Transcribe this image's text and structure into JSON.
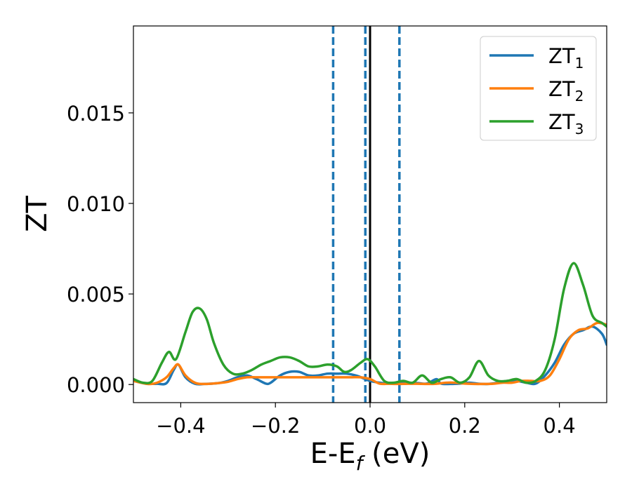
{
  "chart_data": {
    "type": "line",
    "title": "",
    "xlabel": {
      "main": "E-E",
      "sub": "f",
      "unit": " (eV)"
    },
    "ylabel": "ZT",
    "xlim": [
      -0.5,
      0.5
    ],
    "ylim": [
      -0.001,
      0.0198
    ],
    "xticks": [
      -0.4,
      -0.2,
      0.0,
      0.2,
      0.4
    ],
    "xtick_labels": [
      "−0.4",
      "−0.2",
      "0.0",
      "0.2",
      "0.4"
    ],
    "yticks": [
      0.0,
      0.005,
      0.01,
      0.015
    ],
    "ytick_labels": [
      "0.000",
      "0.005",
      "0.010",
      "0.015"
    ],
    "grid": false,
    "legend_position": "top-right",
    "vlines": [
      {
        "x": -0.078,
        "style": "dashed",
        "color": "#1f77b4"
      },
      {
        "x": -0.01,
        "style": "dashed",
        "color": "#1f77b4"
      },
      {
        "x": 0.0,
        "style": "solid",
        "color": "#000000"
      },
      {
        "x": 0.062,
        "style": "dashed",
        "color": "#1f77b4"
      }
    ],
    "series": [
      {
        "name": "ZT",
        "sub": "1",
        "color": "#1f77b4",
        "x": [
          -0.5,
          -0.47,
          -0.45,
          -0.43,
          -0.415,
          -0.405,
          -0.39,
          -0.37,
          -0.35,
          -0.32,
          -0.3,
          -0.28,
          -0.26,
          -0.24,
          -0.22,
          -0.21,
          -0.19,
          -0.17,
          -0.15,
          -0.13,
          -0.11,
          -0.09,
          -0.07,
          -0.05,
          -0.03,
          -0.01,
          0.0,
          0.02,
          0.04,
          0.06,
          0.08,
          0.1,
          0.12,
          0.14,
          0.15,
          0.17,
          0.19,
          0.21,
          0.23,
          0.25,
          0.27,
          0.29,
          0.31,
          0.33,
          0.35,
          0.37,
          0.39,
          0.41,
          0.43,
          0.45,
          0.47,
          0.49,
          0.5
        ],
        "y": [
          0.0002,
          5e-05,
          4e-05,
          8e-05,
          0.0008,
          0.0011,
          0.0004,
          4e-05,
          3e-05,
          8e-05,
          0.0002,
          0.0004,
          0.0005,
          0.0003,
          5e-05,
          0.0001,
          0.0005,
          0.0007,
          0.0007,
          0.0005,
          0.0005,
          0.0006,
          0.0006,
          0.0006,
          0.0005,
          0.0003,
          0.0002,
          0.0001,
          5e-05,
          0.0001,
          0.0001,
          8e-05,
          5e-05,
          0.0003,
          5e-05,
          3e-05,
          5e-05,
          0.0001,
          4e-05,
          3e-05,
          0.0001,
          0.0002,
          0.0002,
          0.0001,
          5e-05,
          0.0005,
          0.0012,
          0.0022,
          0.0028,
          0.003,
          0.0032,
          0.0028,
          0.0022
        ]
      },
      {
        "name": "ZT",
        "sub": "2",
        "color": "#ff7f0e",
        "x": [
          -0.5,
          -0.47,
          -0.45,
          -0.43,
          -0.415,
          -0.405,
          -0.39,
          -0.37,
          -0.35,
          -0.32,
          -0.3,
          -0.28,
          -0.26,
          -0.24,
          -0.22,
          -0.2,
          -0.18,
          -0.16,
          -0.14,
          -0.12,
          -0.1,
          -0.08,
          -0.06,
          -0.04,
          -0.02,
          0.0,
          0.02,
          0.04,
          0.06,
          0.08,
          0.1,
          0.12,
          0.14,
          0.16,
          0.18,
          0.2,
          0.22,
          0.24,
          0.26,
          0.28,
          0.3,
          0.32,
          0.34,
          0.36,
          0.38,
          0.4,
          0.42,
          0.44,
          0.46,
          0.48,
          0.5
        ],
        "y": [
          0.0002,
          3e-05,
          0.0001,
          0.0004,
          0.0009,
          0.0011,
          0.0005,
          0.0001,
          3e-05,
          8e-05,
          0.00015,
          0.0003,
          0.0004,
          0.0004,
          0.0004,
          0.0004,
          0.0004,
          0.0004,
          0.0004,
          0.0004,
          0.0004,
          0.0004,
          0.0004,
          0.0004,
          0.0004,
          0.0003,
          5e-05,
          4e-05,
          3e-05,
          4e-05,
          4e-05,
          3e-05,
          4e-05,
          0.0001,
          0.0001,
          5e-05,
          3e-05,
          3e-05,
          4e-05,
          0.0001,
          0.0001,
          0.0002,
          0.0002,
          0.0002,
          0.0005,
          0.0014,
          0.0025,
          0.003,
          0.0031,
          0.0034,
          0.0033
        ]
      },
      {
        "name": "ZT",
        "sub": "3",
        "color": "#2ca02c",
        "x": [
          -0.5,
          -0.48,
          -0.46,
          -0.44,
          -0.425,
          -0.41,
          -0.39,
          -0.375,
          -0.36,
          -0.345,
          -0.33,
          -0.31,
          -0.29,
          -0.27,
          -0.25,
          -0.23,
          -0.21,
          -0.19,
          -0.17,
          -0.15,
          -0.13,
          -0.11,
          -0.09,
          -0.07,
          -0.055,
          -0.04,
          -0.02,
          -0.005,
          0.01,
          0.03,
          0.05,
          0.07,
          0.09,
          0.11,
          0.13,
          0.15,
          0.17,
          0.19,
          0.21,
          0.23,
          0.25,
          0.27,
          0.29,
          0.31,
          0.33,
          0.35,
          0.37,
          0.39,
          0.41,
          0.43,
          0.45,
          0.47,
          0.49,
          0.5
        ],
        "y": [
          0.0003,
          0.0001,
          0.0002,
          0.0012,
          0.0018,
          0.0014,
          0.0029,
          0.004,
          0.0042,
          0.0036,
          0.0023,
          0.0011,
          0.0006,
          0.0006,
          0.0008,
          0.0011,
          0.0013,
          0.0015,
          0.0015,
          0.0013,
          0.001,
          0.001,
          0.0011,
          0.001,
          0.0007,
          0.0008,
          0.0012,
          0.0014,
          0.001,
          0.0002,
          0.0001,
          0.0002,
          0.0001,
          0.0005,
          0.0001,
          0.0003,
          0.0004,
          0.0001,
          0.0004,
          0.0013,
          0.0005,
          0.0002,
          0.0002,
          0.0003,
          0.0001,
          0.0002,
          0.0008,
          0.0025,
          0.0053,
          0.0067,
          0.0055,
          0.0038,
          0.0034,
          0.0032
        ]
      }
    ]
  }
}
